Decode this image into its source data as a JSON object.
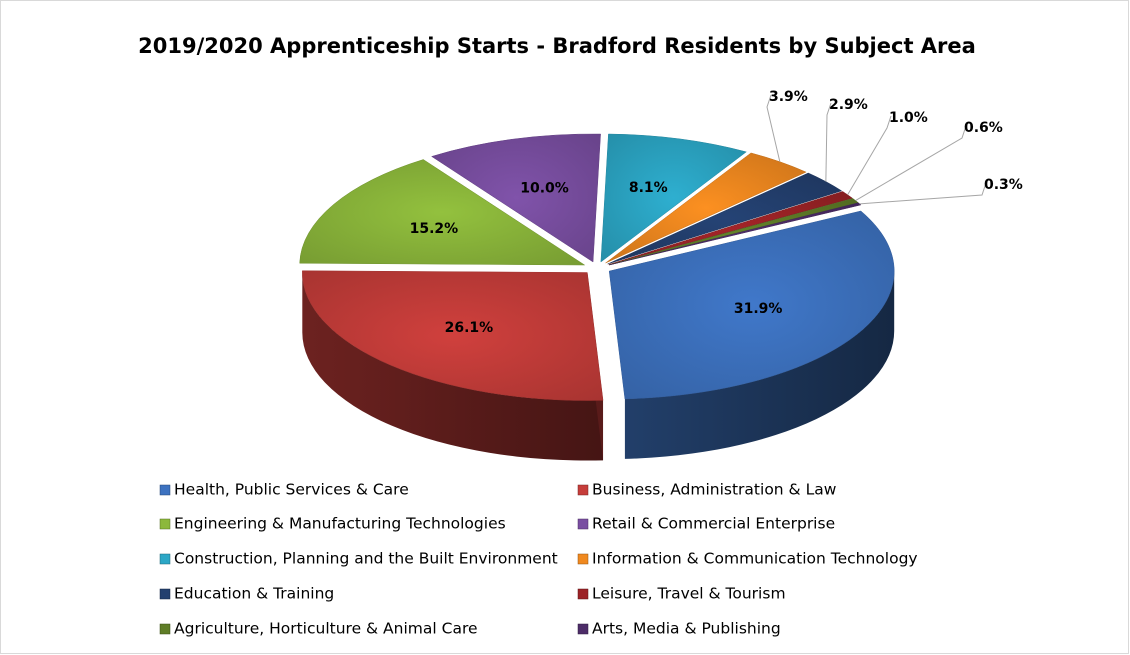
{
  "chart_data": {
    "type": "pie",
    "title": "2019/2020 Apprenticeship Starts - Bradford Residents by Subject Area",
    "categories": [
      "Health, Public Services & Care",
      "Business, Administration & Law",
      "Engineering & Manufacturing Technologies",
      "Retail & Commercial Enterprise",
      "Construction, Planning and the Built Environment",
      "Information & Communication Technology",
      "Education & Training",
      "Leisure, Travel & Tourism",
      "Agriculture, Horticulture & Animal Care",
      "Arts, Media & Publishing"
    ],
    "values": [
      31.9,
      26.1,
      15.2,
      10.0,
      8.1,
      3.9,
      2.9,
      1.0,
      0.6,
      0.3
    ],
    "value_labels": [
      "31.9%",
      "26.1%",
      "15.2%",
      "10.0%",
      "8.1%",
      "3.9%",
      "2.9%",
      "1.0%",
      "0.6%",
      "0.3%"
    ],
    "colors": [
      "#3d72c0",
      "#c63d3a",
      "#8cb83b",
      "#7a4fa2",
      "#2ca7c6",
      "#f0891f",
      "#23406f",
      "#9c2226",
      "#5f7d27",
      "#4d2c68"
    ],
    "legend": "bottom"
  }
}
